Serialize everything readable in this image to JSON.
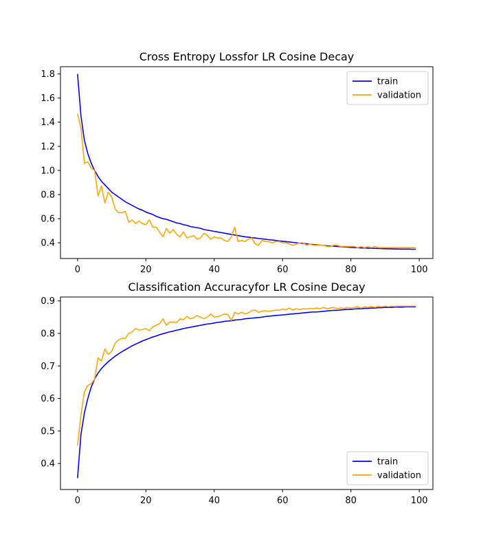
{
  "chart_data": [
    {
      "type": "line",
      "title": "Cross Entropy Lossfor LR Cosine Decay",
      "xlabel": "",
      "ylabel": "",
      "xlim": [
        -5,
        104
      ],
      "ylim": [
        0.27,
        1.86
      ],
      "xticks": [
        0,
        20,
        40,
        60,
        80,
        100
      ],
      "xtick_labels": [
        "0",
        "20",
        "40",
        "60",
        "80",
        "100"
      ],
      "yticks": [
        0.4,
        0.6,
        0.8,
        1.0,
        1.2,
        1.4,
        1.6,
        1.8
      ],
      "ytick_labels": [
        "0.4",
        "0.6",
        "0.8",
        "1.0",
        "1.2",
        "1.4",
        "1.6",
        "1.8"
      ],
      "grid": false,
      "legend_position": "top-right",
      "x": [
        0,
        1,
        2,
        3,
        4,
        5,
        6,
        7,
        8,
        9,
        10,
        11,
        12,
        13,
        14,
        15,
        16,
        17,
        18,
        19,
        20,
        21,
        22,
        23,
        24,
        25,
        26,
        27,
        28,
        29,
        30,
        31,
        32,
        33,
        34,
        35,
        36,
        37,
        38,
        39,
        40,
        41,
        42,
        43,
        44,
        45,
        46,
        47,
        48,
        49,
        50,
        51,
        52,
        53,
        54,
        55,
        56,
        57,
        58,
        59,
        60,
        61,
        62,
        63,
        64,
        65,
        66,
        67,
        68,
        69,
        70,
        71,
        72,
        73,
        74,
        75,
        76,
        77,
        78,
        79,
        80,
        81,
        82,
        83,
        84,
        85,
        86,
        87,
        88,
        89,
        90,
        91,
        92,
        93,
        94,
        95,
        96,
        97,
        98,
        99
      ],
      "series": [
        {
          "name": "train",
          "color": "#0000ff",
          "values": [
            1.8,
            1.45,
            1.25,
            1.14,
            1.06,
            1.0,
            0.95,
            0.91,
            0.88,
            0.85,
            0.82,
            0.8,
            0.78,
            0.76,
            0.74,
            0.725,
            0.71,
            0.695,
            0.68,
            0.67,
            0.655,
            0.645,
            0.635,
            0.62,
            0.61,
            0.6,
            0.595,
            0.585,
            0.575,
            0.565,
            0.56,
            0.55,
            0.545,
            0.535,
            0.53,
            0.525,
            0.52,
            0.51,
            0.505,
            0.5,
            0.495,
            0.49,
            0.485,
            0.48,
            0.475,
            0.47,
            0.465,
            0.46,
            0.455,
            0.45,
            0.447,
            0.443,
            0.44,
            0.436,
            0.433,
            0.43,
            0.426,
            0.423,
            0.42,
            0.416,
            0.413,
            0.41,
            0.407,
            0.404,
            0.401,
            0.398,
            0.395,
            0.392,
            0.389,
            0.386,
            0.384,
            0.381,
            0.379,
            0.376,
            0.374,
            0.372,
            0.37,
            0.368,
            0.366,
            0.364,
            0.362,
            0.361,
            0.359,
            0.358,
            0.357,
            0.356,
            0.355,
            0.354,
            0.353,
            0.352,
            0.351,
            0.35,
            0.35,
            0.349,
            0.349,
            0.348,
            0.348,
            0.348,
            0.347,
            0.347
          ]
        },
        {
          "name": "validation",
          "color": "#ffa500",
          "values": [
            1.47,
            1.35,
            1.06,
            1.07,
            1.02,
            1.0,
            0.79,
            0.87,
            0.73,
            0.82,
            0.78,
            0.68,
            0.65,
            0.65,
            0.66,
            0.57,
            0.59,
            0.56,
            0.58,
            0.56,
            0.55,
            0.59,
            0.53,
            0.53,
            0.49,
            0.45,
            0.52,
            0.48,
            0.51,
            0.47,
            0.45,
            0.49,
            0.44,
            0.45,
            0.46,
            0.43,
            0.44,
            0.48,
            0.46,
            0.43,
            0.45,
            0.44,
            0.44,
            0.42,
            0.41,
            0.45,
            0.53,
            0.41,
            0.42,
            0.41,
            0.43,
            0.44,
            0.39,
            0.38,
            0.42,
            0.41,
            0.41,
            0.4,
            0.41,
            0.41,
            0.4,
            0.4,
            0.39,
            0.38,
            0.39,
            0.4,
            0.4,
            0.38,
            0.39,
            0.38,
            0.38,
            0.38,
            0.38,
            0.37,
            0.37,
            0.38,
            0.38,
            0.37,
            0.37,
            0.37,
            0.37,
            0.37,
            0.36,
            0.37,
            0.36,
            0.37,
            0.36,
            0.37,
            0.36,
            0.36,
            0.36,
            0.36,
            0.36,
            0.36,
            0.36,
            0.36,
            0.36,
            0.36,
            0.36,
            0.36
          ]
        }
      ]
    },
    {
      "type": "line",
      "title": "Classification Accuracyfor LR Cosine Decay",
      "xlabel": "",
      "ylabel": "",
      "xlim": [
        -5,
        104
      ],
      "ylim": [
        0.32,
        0.912
      ],
      "xticks": [
        0,
        20,
        40,
        60,
        80,
        100
      ],
      "xtick_labels": [
        "0",
        "20",
        "40",
        "60",
        "80",
        "100"
      ],
      "yticks": [
        0.4,
        0.5,
        0.6,
        0.7,
        0.8,
        0.9
      ],
      "ytick_labels": [
        "0.4",
        "0.5",
        "0.6",
        "0.7",
        "0.8",
        "0.9"
      ],
      "grid": false,
      "legend_position": "bottom-right",
      "x": [
        0,
        1,
        2,
        3,
        4,
        5,
        6,
        7,
        8,
        9,
        10,
        11,
        12,
        13,
        14,
        15,
        16,
        17,
        18,
        19,
        20,
        21,
        22,
        23,
        24,
        25,
        26,
        27,
        28,
        29,
        30,
        31,
        32,
        33,
        34,
        35,
        36,
        37,
        38,
        39,
        40,
        41,
        42,
        43,
        44,
        45,
        46,
        47,
        48,
        49,
        50,
        51,
        52,
        53,
        54,
        55,
        56,
        57,
        58,
        59,
        60,
        61,
        62,
        63,
        64,
        65,
        66,
        67,
        68,
        69,
        70,
        71,
        72,
        73,
        74,
        75,
        76,
        77,
        78,
        79,
        80,
        81,
        82,
        83,
        84,
        85,
        86,
        87,
        88,
        89,
        90,
        91,
        92,
        93,
        94,
        95,
        96,
        97,
        98,
        99
      ],
      "series": [
        {
          "name": "train",
          "color": "#0000ff",
          "values": [
            0.355,
            0.49,
            0.555,
            0.6,
            0.635,
            0.66,
            0.678,
            0.692,
            0.703,
            0.713,
            0.722,
            0.73,
            0.737,
            0.744,
            0.75,
            0.756,
            0.762,
            0.767,
            0.772,
            0.777,
            0.781,
            0.785,
            0.789,
            0.792,
            0.796,
            0.799,
            0.802,
            0.805,
            0.807,
            0.81,
            0.812,
            0.815,
            0.817,
            0.819,
            0.821,
            0.823,
            0.825,
            0.827,
            0.829,
            0.83,
            0.832,
            0.834,
            0.835,
            0.837,
            0.838,
            0.839,
            0.841,
            0.842,
            0.843,
            0.845,
            0.846,
            0.847,
            0.848,
            0.849,
            0.85,
            0.852,
            0.853,
            0.854,
            0.855,
            0.856,
            0.857,
            0.858,
            0.859,
            0.86,
            0.861,
            0.862,
            0.863,
            0.864,
            0.865,
            0.866,
            0.866,
            0.867,
            0.868,
            0.869,
            0.87,
            0.871,
            0.871,
            0.872,
            0.873,
            0.874,
            0.874,
            0.875,
            0.876,
            0.876,
            0.877,
            0.877,
            0.878,
            0.878,
            0.879,
            0.879,
            0.88,
            0.88,
            0.88,
            0.881,
            0.881,
            0.881,
            0.882,
            0.882,
            0.882,
            0.882
          ]
        },
        {
          "name": "validation",
          "color": "#ffa500",
          "values": [
            0.455,
            0.55,
            0.62,
            0.64,
            0.645,
            0.66,
            0.725,
            0.715,
            0.752,
            0.735,
            0.745,
            0.77,
            0.78,
            0.785,
            0.785,
            0.8,
            0.805,
            0.815,
            0.81,
            0.812,
            0.815,
            0.808,
            0.82,
            0.825,
            0.83,
            0.845,
            0.825,
            0.835,
            0.835,
            0.833,
            0.845,
            0.842,
            0.852,
            0.845,
            0.848,
            0.855,
            0.85,
            0.845,
            0.85,
            0.86,
            0.85,
            0.852,
            0.855,
            0.86,
            0.858,
            0.84,
            0.865,
            0.86,
            0.865,
            0.86,
            0.863,
            0.87,
            0.872,
            0.865,
            0.868,
            0.87,
            0.868,
            0.87,
            0.872,
            0.871,
            0.875,
            0.873,
            0.878,
            0.872,
            0.876,
            0.873,
            0.876,
            0.875,
            0.877,
            0.876,
            0.878,
            0.876,
            0.88,
            0.876,
            0.878,
            0.88,
            0.876,
            0.878,
            0.877,
            0.88,
            0.878,
            0.88,
            0.882,
            0.878,
            0.882,
            0.88,
            0.883,
            0.88,
            0.883,
            0.882,
            0.884,
            0.882,
            0.884,
            0.883,
            0.884,
            0.884,
            0.884,
            0.884,
            0.884,
            0.884
          ]
        }
      ]
    }
  ]
}
